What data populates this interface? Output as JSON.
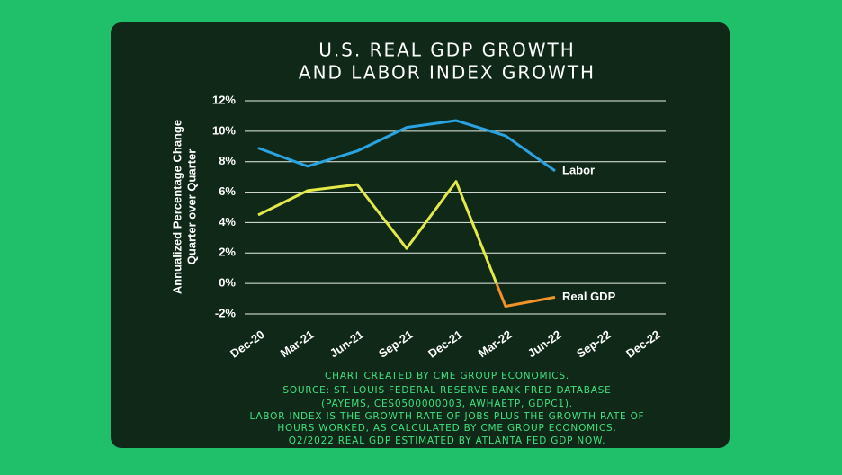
{
  "chart_data": {
    "type": "line",
    "title": [
      "U.S. REAL GDP GROWTH",
      "AND LABOR INDEX GROWTH"
    ],
    "ylabel": [
      "Annualized Percentage Change",
      "Quarter over Quarter"
    ],
    "categories": [
      "Dec-20",
      "Mar-21",
      "Jun-21",
      "Sep-21",
      "Dec-21",
      "Mar-22",
      "Jun-22",
      "Sep-22",
      "Dec-22"
    ],
    "series": [
      {
        "name": "Labor",
        "color": "#2aa3e0",
        "values": [
          8.9,
          7.7,
          8.7,
          10.25,
          10.7,
          9.7,
          7.4,
          null,
          null
        ]
      },
      {
        "name": "Real GDP",
        "color": "#e3ea48",
        "negative_color": "#f0922a",
        "values": [
          4.5,
          6.1,
          6.5,
          2.3,
          6.7,
          -1.5,
          -0.9,
          null,
          null
        ]
      }
    ],
    "ylim": [
      -2,
      12
    ],
    "yticks": [
      {
        "value": -2,
        "label": "-2%"
      },
      {
        "value": 0,
        "label": "0%"
      },
      {
        "value": 2,
        "label": "2%"
      },
      {
        "value": 4,
        "label": "4%"
      },
      {
        "value": 6,
        "label": "6%"
      },
      {
        "value": 8,
        "label": "8%"
      },
      {
        "value": 10,
        "label": "10%"
      },
      {
        "value": 12,
        "label": "12%"
      }
    ],
    "grid": true,
    "notes": [
      "CHART CREATED BY CME GROUP ECONOMICS.",
      "SOURCE: ST. LOUIS FEDERAL RESERVE BANK FRED DATABASE",
      "(PAYEMS, CES0500000003, AWHAETP, GDPC1).",
      "LABOR INDEX IS THE GROWTH RATE OF JOBS PLUS THE GROWTH RATE OF",
      "HOURS WORKED, AS CALCULATED BY CME GROUP ECONOMICS.",
      "Q2/2022 REAL GDP ESTIMATED BY ATLANTA FED GDP NOW."
    ]
  }
}
